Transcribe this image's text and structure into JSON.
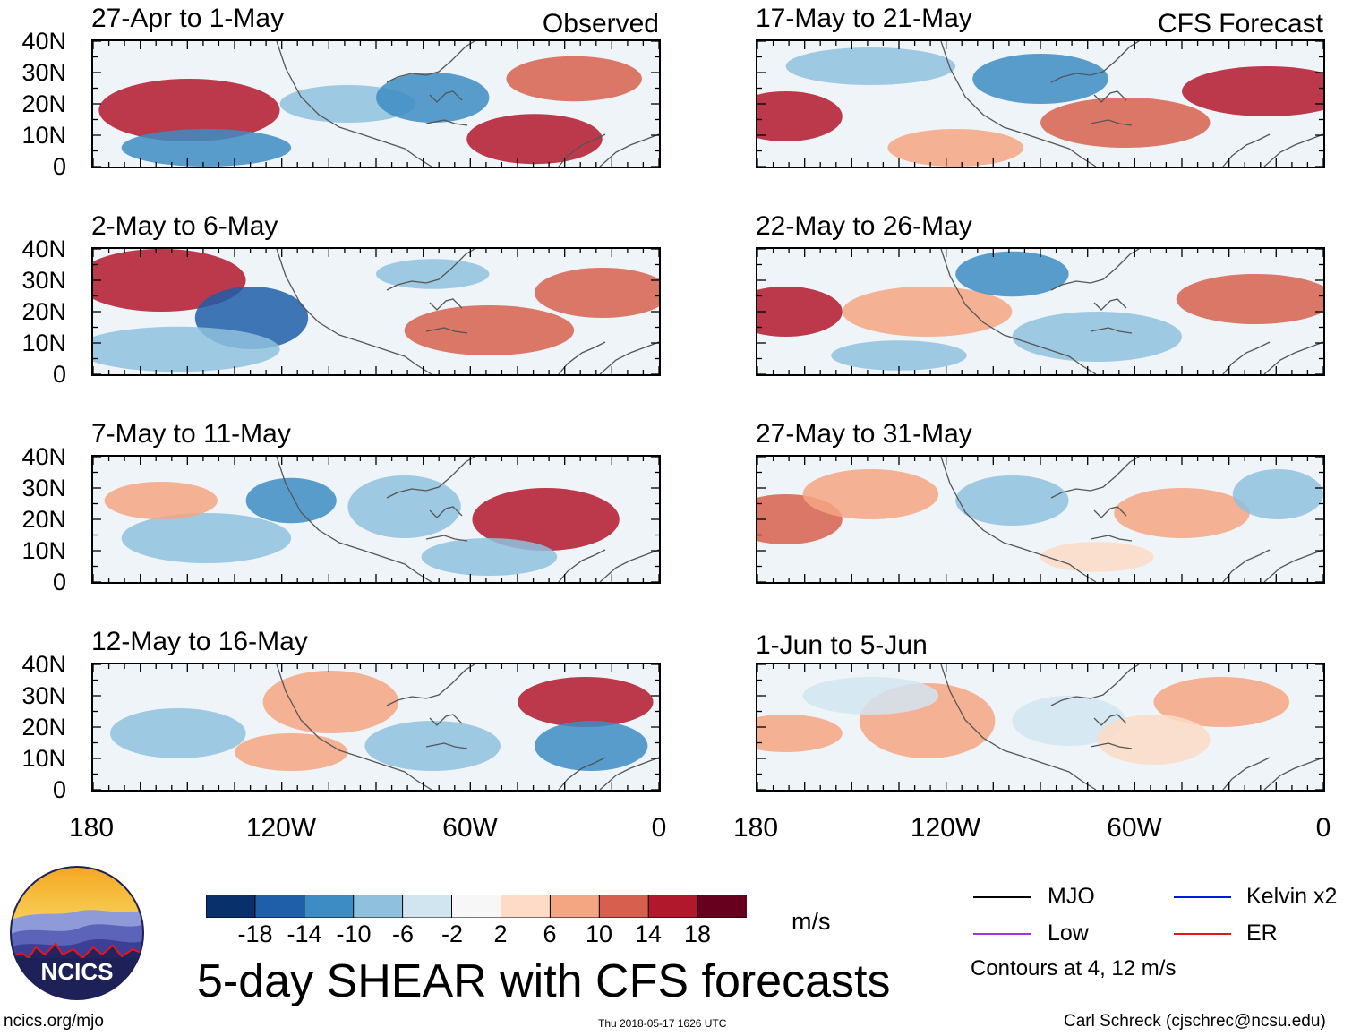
{
  "columns": {
    "left": "Observed",
    "right": "CFS Forecast"
  },
  "panels": {
    "left": [
      {
        "title": "27-Apr to 1-May"
      },
      {
        "title": "2-May to 6-May"
      },
      {
        "title": "7-May to 11-May"
      },
      {
        "title": "12-May to 16-May"
      }
    ],
    "right": [
      {
        "title": "17-May to 21-May"
      },
      {
        "title": "22-May to 26-May"
      },
      {
        "title": "27-May to 31-May"
      },
      {
        "title": "1-Jun to 5-Jun"
      }
    ]
  },
  "lat_labels": [
    "40N",
    "30N",
    "20N",
    "10N",
    "0"
  ],
  "lon_labels": [
    "180",
    "120W",
    "60W",
    "0"
  ],
  "colorbar": {
    "colors": [
      "#08306b",
      "#1f5ea8",
      "#3d8cc4",
      "#8fc1de",
      "#d1e5f0",
      "#f7f7f7",
      "#fddbc7",
      "#f4a582",
      "#d6604d",
      "#b2182b",
      "#67001f"
    ],
    "labels": [
      "-18",
      "-14",
      "-10",
      "-6",
      "-2",
      "2",
      "6",
      "10",
      "14",
      "18"
    ],
    "units": "m/s"
  },
  "legend": {
    "items": [
      {
        "label": "MJO",
        "color": "#000000"
      },
      {
        "label": "Kelvin x2",
        "color": "#0018e0"
      },
      {
        "label": "Low",
        "color": "#a233e8"
      },
      {
        "label": "ER",
        "color": "#e8141c"
      }
    ],
    "note": "Contours at 4, 12 m/s"
  },
  "main_title": "5-day SHEAR with CFS forecasts",
  "logo_text": "NCICS",
  "footer": {
    "left": "ncics.org/mjo",
    "center": "Thu 2018-05-17 1626 UTC",
    "right": "Carl Schreck (cjschrec@ncsu.edu)"
  }
}
